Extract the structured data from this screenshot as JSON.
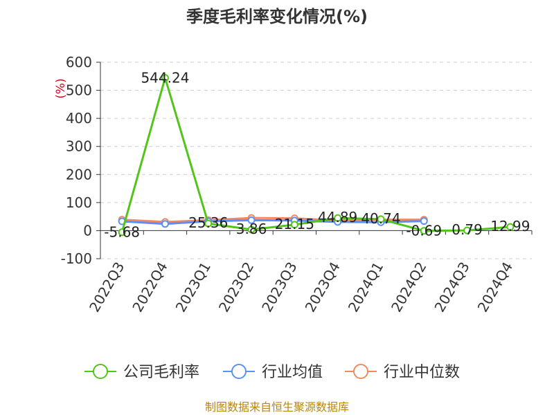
{
  "chart_data": {
    "type": "line",
    "title": "季度毛利率变化情况(%)",
    "y_unit": "(%)",
    "categories": [
      "2022Q3",
      "2022Q4",
      "2023Q1",
      "2023Q2",
      "2023Q3",
      "2023Q4",
      "2024Q1",
      "2024Q2",
      "2024Q3",
      "2024Q4"
    ],
    "ylim": [
      -100,
      600
    ],
    "yticks": [
      -100,
      0,
      100,
      200,
      300,
      400,
      500,
      600
    ],
    "grid": true,
    "legend_position": "bottom",
    "series": [
      {
        "name": "公司毛利率",
        "color": "#52c41a",
        "values": [
          -5.68,
          544.24,
          25.36,
          3.86,
          21.15,
          44.89,
          40.74,
          -0.69,
          0.79,
          12.99
        ],
        "labels": [
          "-5.68",
          "544.24",
          "25.36",
          "3.86",
          "21.15",
          "44.89",
          "40.74",
          "-0.69",
          "0.79",
          "12.99"
        ]
      },
      {
        "name": "行业均值",
        "color": "#5b8ff9",
        "values": [
          33,
          24,
          33,
          37,
          36,
          31,
          30,
          34,
          null,
          null
        ]
      },
      {
        "name": "行业中位数",
        "color": "#f4895f",
        "values": [
          39,
          31,
          37,
          45,
          44,
          36,
          39,
          39,
          null,
          null
        ]
      }
    ]
  },
  "source": "制图数据来自恒生聚源数据库"
}
